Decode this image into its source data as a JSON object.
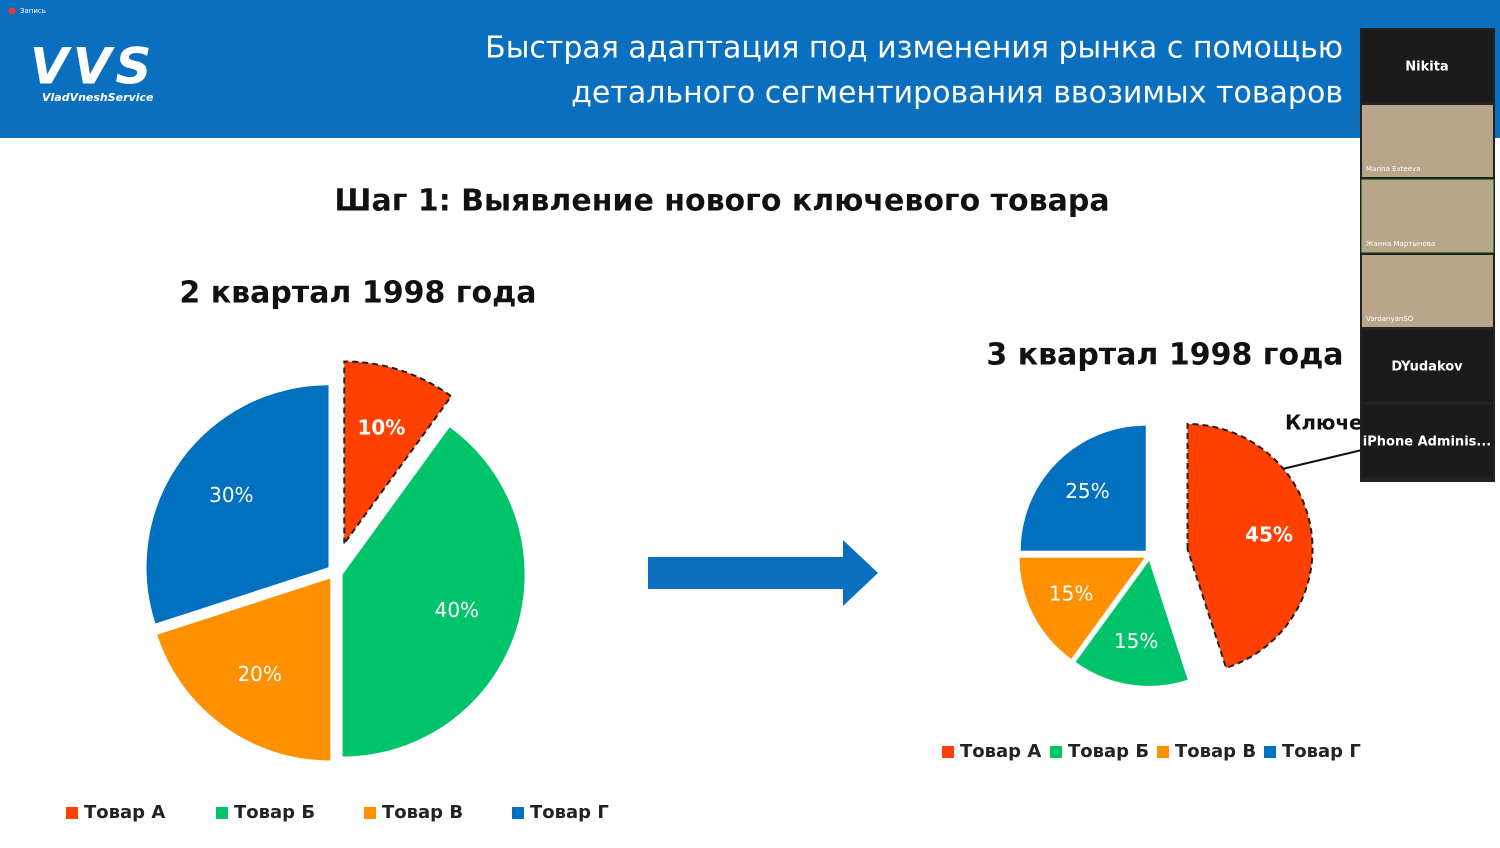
{
  "recording": "Запись",
  "header": {
    "logo": "VVS",
    "logo_sub": "VladVneshService",
    "title_lines": [
      "Быстрая адаптация под изменения рынка с помощью",
      "детального сегментирования ввозимых товаров"
    ]
  },
  "slide": {
    "step": "Шаг 1: Выявление нового ключевого товара",
    "callout": "Ключе"
  },
  "chart_data": [
    {
      "type": "pie",
      "title": "2 квартал 1998 года",
      "categories": [
        "Товар А",
        "Товар Б",
        "Товар В",
        "Товар Г"
      ],
      "values": [
        10,
        40,
        20,
        30
      ],
      "value_labels": [
        "10%",
        "40%",
        "20%",
        "30%"
      ],
      "colors": [
        "#ff4000",
        "#00c46a",
        "#ff9000",
        "#0070c0"
      ]
    },
    {
      "type": "pie",
      "title": "3 квартал 1998 года",
      "categories": [
        "Товар А",
        "Товар Б",
        "Товар В",
        "Товар Г"
      ],
      "values": [
        45,
        15,
        15,
        25
      ],
      "value_labels": [
        "45%",
        "15%",
        "15%",
        "25%"
      ],
      "colors": [
        "#ff4000",
        "#00c46a",
        "#ff9000",
        "#0070c0"
      ]
    }
  ],
  "participants": [
    "Nikita",
    "Marina Evteeva",
    "Жанна Мартынова",
    "VardanyanSO",
    "DYudakov",
    "iPhone Adminis..."
  ]
}
